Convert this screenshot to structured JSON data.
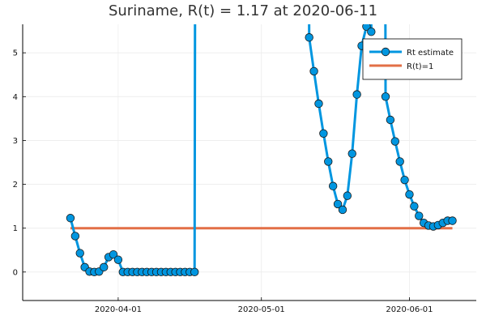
{
  "chart_data": {
    "type": "line",
    "title": "Suriname, R(t) = 1.17 at 2020-06-11",
    "xlabel": "",
    "ylabel": "",
    "x_ticks": [
      {
        "label": "2020-04-01",
        "day": 31
      },
      {
        "label": "2020-05-01",
        "day": 61
      },
      {
        "label": "2020-06-01",
        "day": 92
      }
    ],
    "y_ticks": [
      0,
      1,
      2,
      3,
      4,
      5
    ],
    "xlim": [
      "2020-03-21",
      "2020-06-13"
    ],
    "ylim": [
      -0.65,
      5.65
    ],
    "grid": true,
    "legend_position": "top-right",
    "series": [
      {
        "name": "Rt estimate",
        "color": "#0096e0",
        "marker": "circle",
        "points": [
          [
            21,
            1.23
          ],
          [
            22,
            0.82
          ],
          [
            23,
            0.43
          ],
          [
            24,
            0.11
          ],
          [
            25,
            0.01
          ],
          [
            26,
            0.0
          ],
          [
            27,
            0.01
          ],
          [
            28,
            0.11
          ],
          [
            29,
            0.34
          ],
          [
            30,
            0.4
          ],
          [
            31,
            0.28
          ],
          [
            32,
            0.0
          ],
          [
            33,
            0.0
          ],
          [
            34,
            0.0
          ],
          [
            35,
            0.0
          ],
          [
            36,
            0.0
          ],
          [
            37,
            0.0
          ],
          [
            38,
            0.0
          ],
          [
            39,
            0.0
          ],
          [
            40,
            0.0
          ],
          [
            41,
            0.0
          ],
          [
            42,
            0.0
          ],
          [
            43,
            0.0
          ],
          [
            44,
            0.0
          ],
          [
            45,
            0.0
          ],
          [
            46,
            0.0
          ],
          [
            47,
            0.0
          ],
          [
            71,
            5.35
          ],
          [
            72,
            4.58
          ],
          [
            73,
            3.84
          ],
          [
            74,
            3.16
          ],
          [
            75,
            2.52
          ],
          [
            76,
            1.96
          ],
          [
            77,
            1.55
          ],
          [
            78,
            1.42
          ],
          [
            79,
            1.74
          ],
          [
            80,
            2.7
          ],
          [
            81,
            4.05
          ],
          [
            82,
            5.16
          ],
          [
            83,
            5.6
          ],
          [
            84,
            5.48
          ],
          [
            87,
            4.0
          ],
          [
            88,
            3.47
          ],
          [
            89,
            2.98
          ],
          [
            90,
            2.52
          ],
          [
            91,
            2.1
          ],
          [
            92,
            1.77
          ],
          [
            93,
            1.5
          ],
          [
            94,
            1.28
          ],
          [
            95,
            1.12
          ],
          [
            96,
            1.06
          ],
          [
            97,
            1.04
          ],
          [
            98,
            1.07
          ],
          [
            99,
            1.12
          ],
          [
            100,
            1.17
          ],
          [
            101,
            1.17
          ]
        ]
      },
      {
        "name": "R(t)=1",
        "color": "#e26f46",
        "points": [
          [
            21,
            1.0
          ],
          [
            101,
            1.0
          ]
        ]
      }
    ]
  }
}
